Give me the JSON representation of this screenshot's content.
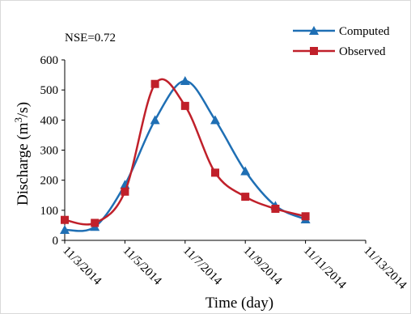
{
  "chart_data": {
    "type": "line",
    "annotation": "NSE=0.72",
    "xlabel": "Time (day)",
    "ylabel_main": "Discharge (m",
    "ylabel_sup": "3",
    "ylabel_tail": "/s)",
    "x_tick_labels": [
      "11/3/2014",
      "11/5/2014",
      "11/7/2014",
      "11/9/2014",
      "11/11/2014",
      "11/13/2014"
    ],
    "x_tick_days": [
      0,
      2,
      4,
      6,
      8,
      10
    ],
    "xlim": [
      0,
      10
    ],
    "y_ticks": [
      0,
      100,
      200,
      300,
      400,
      500,
      600
    ],
    "ylim": [
      0,
      600
    ],
    "grid": false,
    "legend_position": "top-right",
    "series": [
      {
        "name": "Computed",
        "color": "#1f6fb4",
        "marker": "triangle",
        "smooth": true,
        "days": [
          0,
          1,
          2,
          3,
          4,
          5,
          6,
          7,
          8
        ],
        "dates": [
          "11/3/2014",
          "11/4/2014",
          "11/5/2014",
          "11/6/2014",
          "11/7/2014",
          "11/8/2014",
          "11/9/2014",
          "11/10/2014",
          "11/11/2014"
        ],
        "values": [
          35,
          45,
          185,
          400,
          530,
          400,
          230,
          115,
          70
        ]
      },
      {
        "name": "Observed",
        "color": "#c0202a",
        "marker": "square",
        "smooth": true,
        "days": [
          0,
          1,
          2,
          3,
          4,
          5,
          6,
          7,
          8
        ],
        "dates": [
          "11/3/2014",
          "11/4/2014",
          "11/5/2014",
          "11/6/2014",
          "11/7/2014",
          "11/8/2014",
          "11/9/2014",
          "11/10/2014",
          "11/11/2014"
        ],
        "values": [
          68,
          58,
          162,
          520,
          447,
          225,
          145,
          105,
          80
        ]
      }
    ]
  }
}
